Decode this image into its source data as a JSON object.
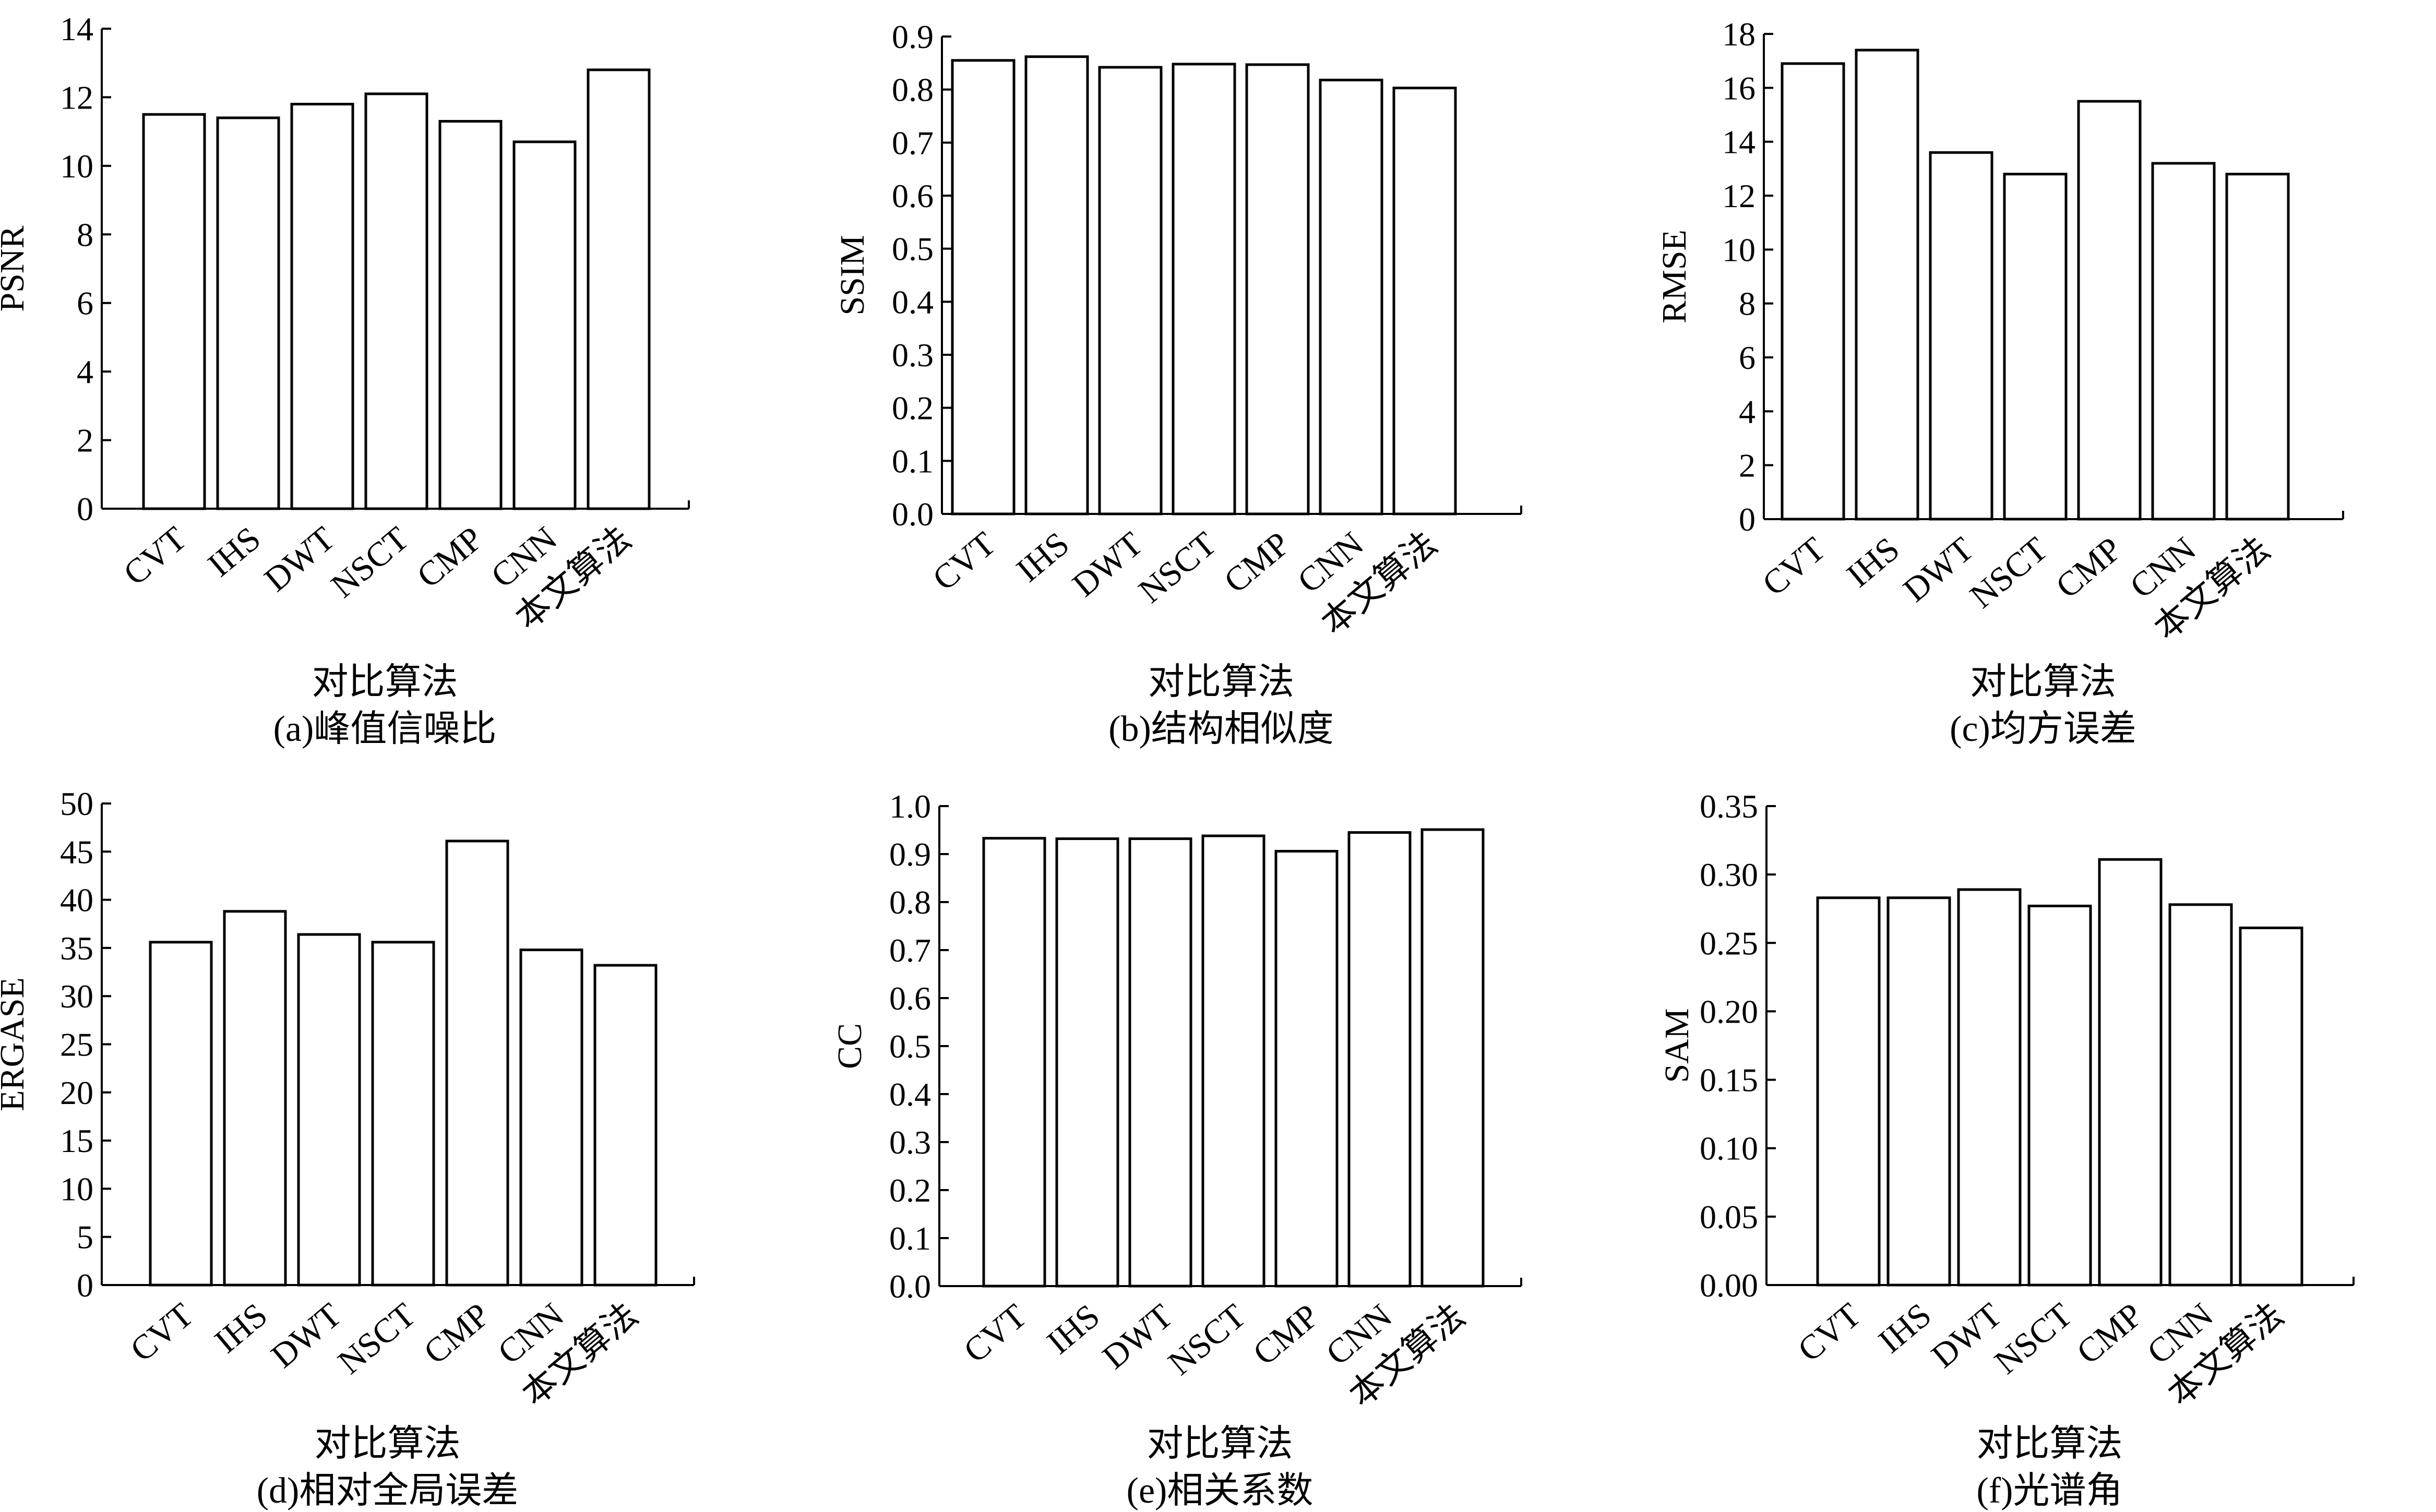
{
  "chart_data": [
    {
      "type": "bar",
      "categories": [
        "CVT",
        "IHS",
        "DWT",
        "NSCT",
        "CMP",
        "CNN",
        "本文算法"
      ],
      "values": [
        11.5,
        11.4,
        11.8,
        12.1,
        11.3,
        10.7,
        12.8
      ],
      "ylabel": "PSNR",
      "xlabel": "对比算法",
      "caption": "(a)峰值信噪比",
      "ylim": [
        0,
        14
      ],
      "yticks": [
        "0",
        "2",
        "4",
        "6",
        "8",
        "10",
        "12",
        "14"
      ],
      "grid": false
    },
    {
      "type": "bar",
      "categories": [
        "CVT",
        "IHS",
        "DWT",
        "NSCT",
        "CMP",
        "CNN",
        "本文算法"
      ],
      "values": [
        0.855,
        0.862,
        0.842,
        0.848,
        0.847,
        0.818,
        0.803
      ],
      "ylabel": "SSIM",
      "xlabel": "对比算法",
      "caption": "(b)结构相似度",
      "ylim": [
        0,
        0.9
      ],
      "yticks": [
        "0.0",
        "0.1",
        "0.2",
        "0.3",
        "0.4",
        "0.5",
        "0.6",
        "0.7",
        "0.8",
        "0.9"
      ],
      "grid": false
    },
    {
      "type": "bar",
      "categories": [
        "CVT",
        "IHS",
        "DWT",
        "NSCT",
        "CMP",
        "CNN",
        "本文算法"
      ],
      "values": [
        16.9,
        17.4,
        13.6,
        12.8,
        15.5,
        13.2,
        12.8
      ],
      "ylabel": "RMSE",
      "xlabel": "对比算法",
      "caption": "(c)均方误差",
      "ylim": [
        0,
        18
      ],
      "yticks": [
        "0",
        "2",
        "4",
        "6",
        "8",
        "10",
        "12",
        "14",
        "16",
        "18"
      ],
      "grid": false
    },
    {
      "type": "bar",
      "categories": [
        "CVT",
        "IHS",
        "DWT",
        "NSCT",
        "CMP",
        "CNN",
        "本文算法"
      ],
      "values": [
        35.6,
        38.8,
        36.4,
        35.6,
        46.1,
        34.8,
        33.2
      ],
      "ylabel": "ERGASE",
      "xlabel": "对比算法",
      "caption": "(d)相对全局误差",
      "ylim": [
        0,
        50
      ],
      "yticks": [
        "0",
        "5",
        "10",
        "15",
        "20",
        "25",
        "30",
        "35",
        "40",
        "45",
        "50"
      ],
      "grid": false
    },
    {
      "type": "bar",
      "categories": [
        "CVT",
        "IHS",
        "DWT",
        "NSCT",
        "CMP",
        "CNN",
        "本文算法"
      ],
      "values": [
        0.933,
        0.932,
        0.932,
        0.938,
        0.906,
        0.945,
        0.951
      ],
      "ylabel": "CC",
      "xlabel": "对比算法",
      "caption": "(e)相关系数",
      "ylim": [
        0,
        1.0
      ],
      "yticks": [
        "0.0",
        "0.1",
        "0.2",
        "0.3",
        "0.4",
        "0.5",
        "0.6",
        "0.7",
        "0.8",
        "0.9",
        "1.0"
      ],
      "grid": false
    },
    {
      "type": "bar",
      "categories": [
        "CVT",
        "IHS",
        "DWT",
        "NSCT",
        "CMP",
        "CNN",
        "本文算法"
      ],
      "values": [
        0.283,
        0.283,
        0.289,
        0.277,
        0.311,
        0.278,
        0.261
      ],
      "ylabel": "SAM",
      "xlabel": "对比算法",
      "caption": "(f)光谱角",
      "ylim": [
        0,
        0.35
      ],
      "yticks": [
        "0.00",
        "0.05",
        "0.10",
        "0.15",
        "0.20",
        "0.25",
        "0.30",
        "0.35"
      ],
      "grid": false
    }
  ]
}
